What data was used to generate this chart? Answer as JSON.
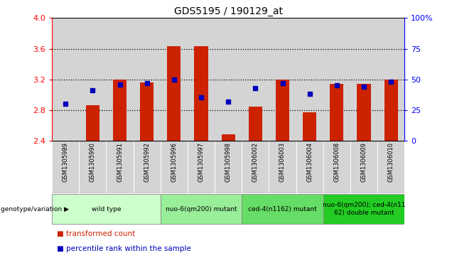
{
  "title": "GDS5195 / 190129_at",
  "samples": [
    "GSM1305989",
    "GSM1305990",
    "GSM1305991",
    "GSM1305992",
    "GSM1305996",
    "GSM1305997",
    "GSM1305998",
    "GSM1306002",
    "GSM1306003",
    "GSM1306004",
    "GSM1306008",
    "GSM1306009",
    "GSM1306010"
  ],
  "red_values": [
    2.4,
    2.86,
    3.2,
    3.16,
    3.63,
    3.63,
    2.48,
    2.84,
    3.2,
    2.77,
    3.14,
    3.14,
    3.2
  ],
  "blue_pct": [
    30,
    41,
    46,
    47,
    50,
    35,
    32,
    43,
    47,
    38,
    45,
    44,
    48
  ],
  "ymin": 2.4,
  "ymax": 4.0,
  "y2min": 0,
  "y2max": 100,
  "yticks_left": [
    2.4,
    2.8,
    3.2,
    3.6,
    4.0
  ],
  "yticks_right": [
    0,
    25,
    50,
    75,
    100
  ],
  "ytick_labels_right": [
    "0",
    "25",
    "50",
    "75",
    "100%"
  ],
  "gridlines": [
    2.8,
    3.2,
    3.6
  ],
  "bar_color": "#cc2200",
  "dot_color": "#0000bb",
  "bar_width": 0.5,
  "col_bg": "#d4d4d4",
  "plot_bg": "#ffffff",
  "groups": [
    {
      "label": "wild type",
      "start": 0,
      "end": 3,
      "color": "#ccffcc"
    },
    {
      "label": "nuo-6(qm200) mutant",
      "start": 4,
      "end": 6,
      "color": "#99ee99"
    },
    {
      "label": "ced-4(n1162) mutant",
      "start": 7,
      "end": 9,
      "color": "#66dd66"
    },
    {
      "label": "nuo-6(qm200); ced-4(n11\n62) double mutant",
      "start": 10,
      "end": 12,
      "color": "#22cc22"
    }
  ],
  "legend_red": "transformed count",
  "legend_blue": "percentile rank within the sample",
  "genotype_label": "genotype/variation"
}
